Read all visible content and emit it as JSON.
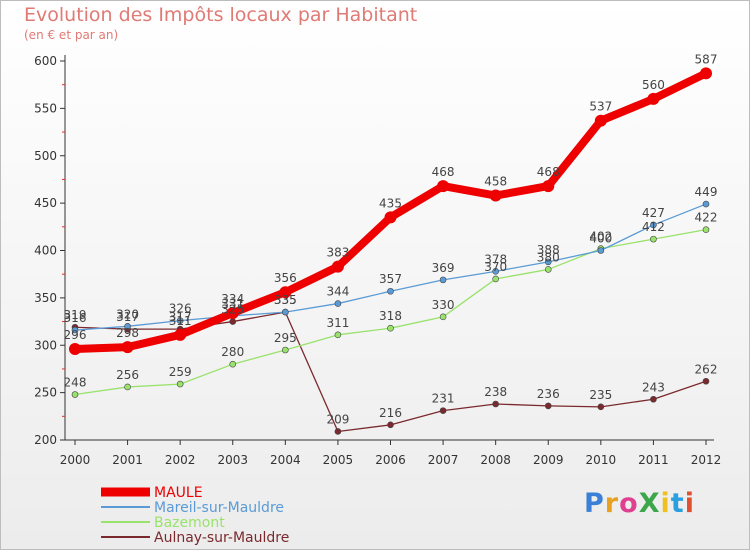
{
  "title": "Evolution des Impôts locaux par Habitant",
  "subtitle": "(en € et par an)",
  "logo_text": "ProXiti",
  "chart_data": {
    "type": "line",
    "title": "Evolution des Impôts locaux par Habitant",
    "subtitle": "(en € et par an)",
    "x": [
      "2000",
      "2001",
      "2002",
      "2003",
      "2004",
      "2005",
      "2006",
      "2007",
      "2008",
      "2009",
      "2010",
      "2011",
      "2012"
    ],
    "ylim": [
      200,
      600
    ],
    "yticks": [
      200,
      250,
      300,
      350,
      400,
      450,
      500,
      550,
      600
    ],
    "grid": false,
    "legend_position": "bottom-left",
    "series": [
      {
        "name": "MAULE",
        "color": "#ee0000",
        "values": [
          296,
          298,
          311,
          334,
          356,
          383,
          435,
          468,
          458,
          468,
          537,
          560,
          587
        ]
      },
      {
        "name": "Mareil-sur-Mauldre",
        "color": "#5b9bd5",
        "values": [
          316,
          320,
          326,
          331,
          335,
          344,
          357,
          369,
          378,
          388,
          400,
          427,
          449
        ]
      },
      {
        "name": "Bazemont",
        "color": "#99e26b",
        "values": [
          248,
          256,
          259,
          280,
          295,
          311,
          318,
          330,
          370,
          380,
          402,
          412,
          422
        ]
      },
      {
        "name": "Aulnay-sur-Mauldre",
        "color": "#7a2a2e",
        "values": [
          319,
          317,
          317,
          325,
          335,
          209,
          216,
          231,
          238,
          236,
          235,
          243,
          262
        ]
      }
    ]
  }
}
